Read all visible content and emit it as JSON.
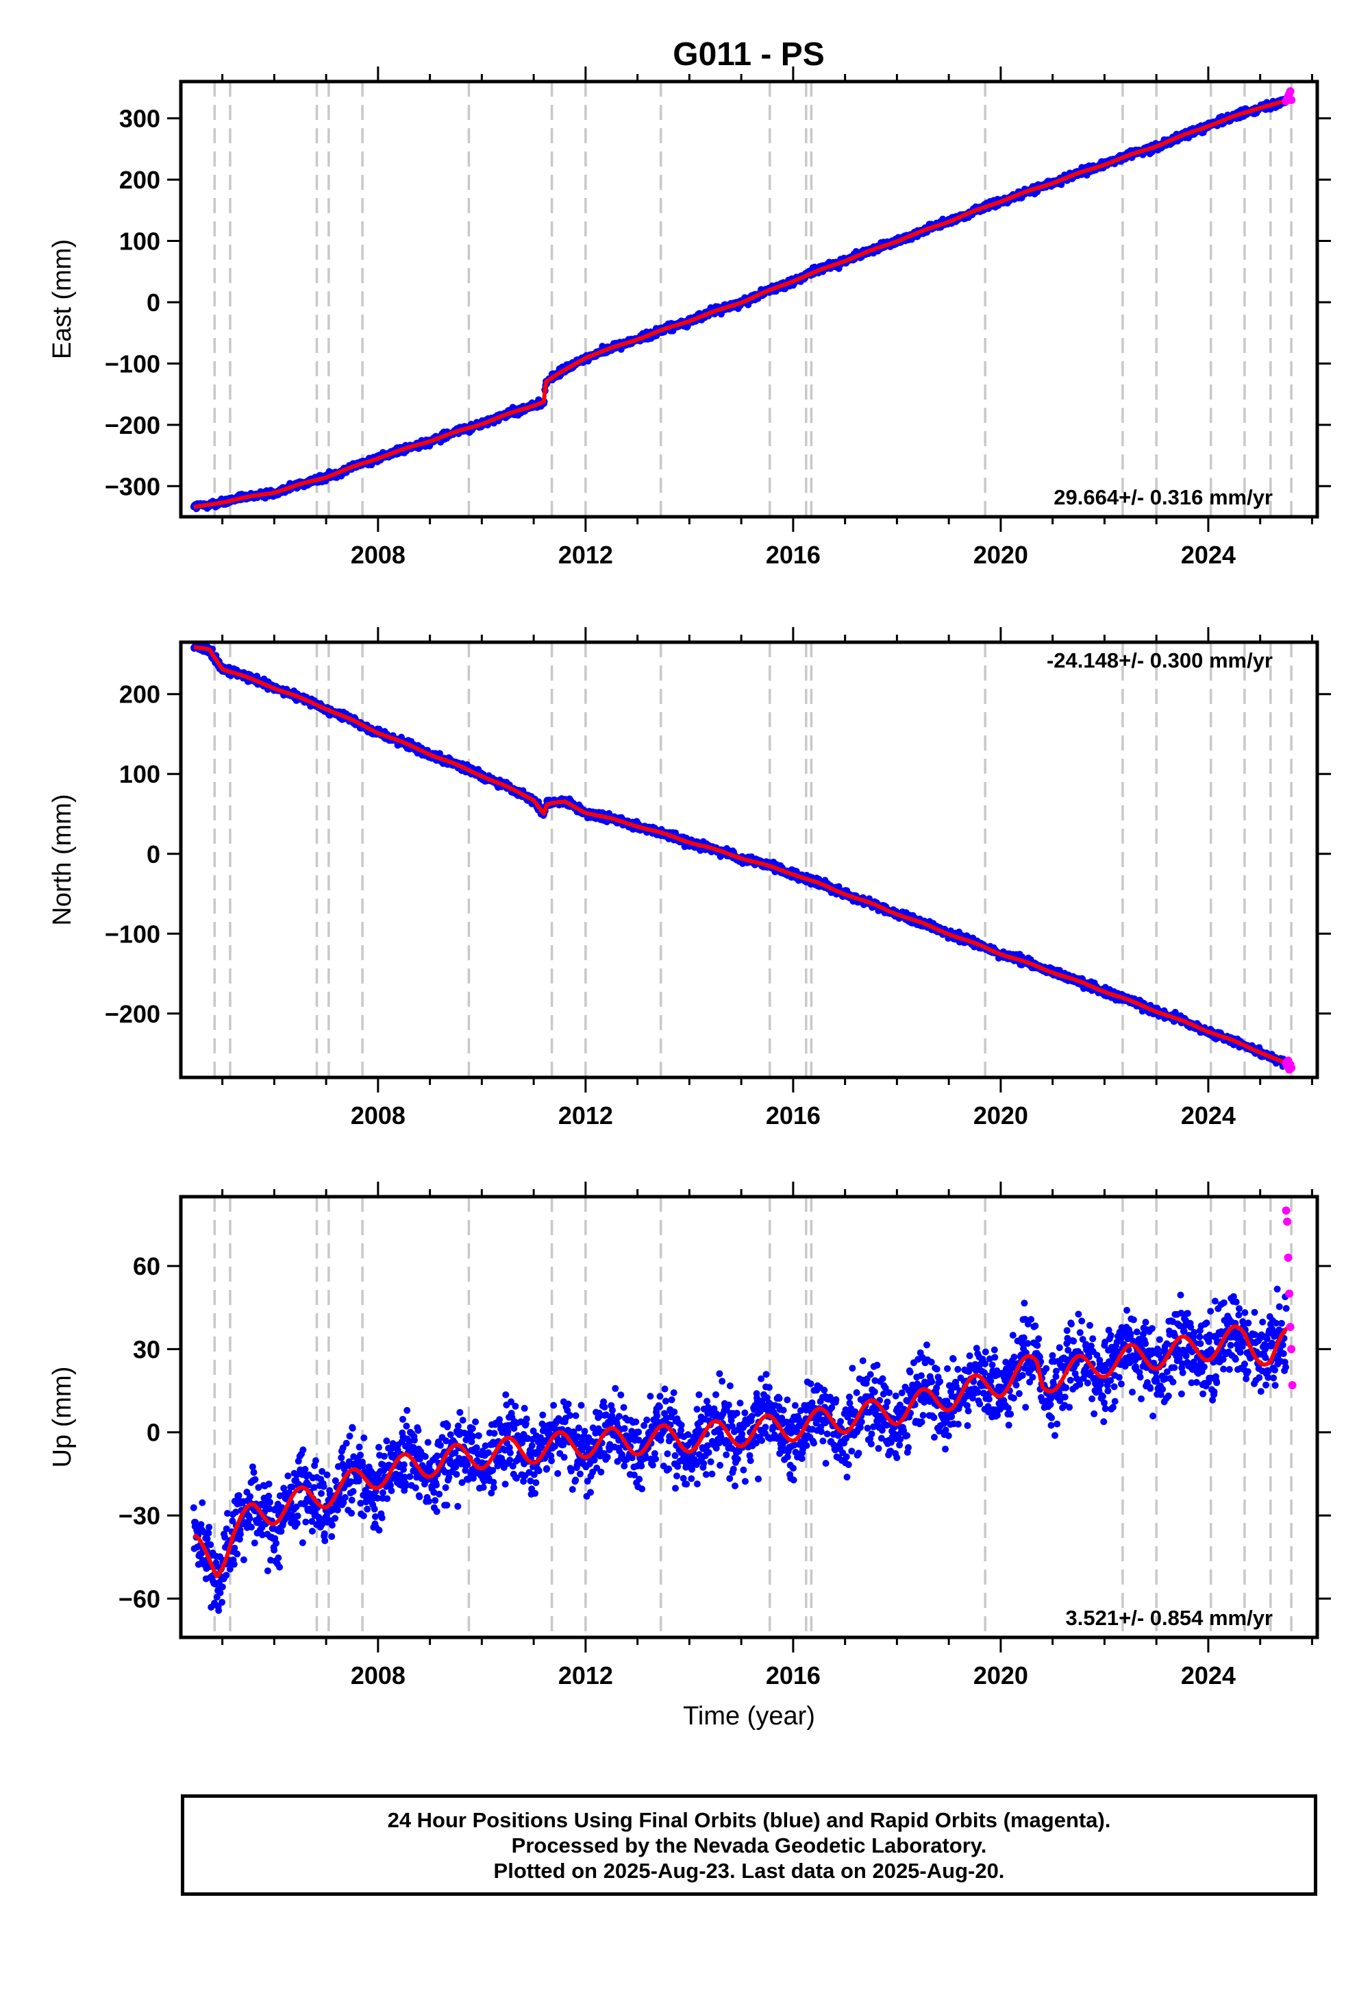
{
  "title": "G011 - PS",
  "colors": {
    "final_orbits": "#0000ff",
    "rapid_orbits": "#ff00ff",
    "model": "#ff0000",
    "event_lines": "#c8c8c8",
    "frame": "#000000"
  },
  "chart_data": [
    {
      "type": "scatter",
      "panel": "east",
      "title": "G011 - PS",
      "xlabel": "",
      "ylabel": "East (mm)",
      "xlim": [
        2004.2,
        2026.1
      ],
      "ylim": [
        -350,
        360
      ],
      "xticks": [
        2008,
        2012,
        2016,
        2020,
        2024
      ],
      "xtick_labels": [
        "2008",
        "2012",
        "2016",
        "2020",
        "2024"
      ],
      "yticks": [
        -300,
        -200,
        -100,
        0,
        100,
        200,
        300
      ],
      "ytick_labels": [
        "−300",
        "−200",
        "−100",
        "0",
        "100",
        "200",
        "300"
      ],
      "grid": false,
      "velocity_label": "29.664+/- 0.316 mm/yr",
      "velocity_position": "bottom-right",
      "event_lines": [
        2004.85,
        2005.15,
        2006.82,
        2007.05,
        2007.7,
        2009.75,
        2011.35,
        2012.0,
        2013.45,
        2015.55,
        2016.25,
        2016.35,
        2019.7,
        2022.35,
        2023.0,
        2024.05,
        2024.7,
        2025.2,
        2025.6
      ],
      "series": [
        {
          "name": "Final Orbits",
          "color": "#0000ff",
          "start": 2004.45,
          "end": 2025.5,
          "noise_mm": 3.0,
          "seasonal_mm": 0.8,
          "curve": [
            [
              2004.45,
              -335
            ],
            [
              2005.0,
              -326
            ],
            [
              2006.0,
              -310
            ],
            [
              2007.0,
              -285
            ],
            [
              2008.0,
              -254
            ],
            [
              2009.0,
              -226
            ],
            [
              2010.0,
              -198
            ],
            [
              2011.0,
              -168
            ],
            [
              2011.2,
              -162
            ],
            [
              2011.23,
              -130
            ],
            [
              2012.0,
              -90
            ],
            [
              2013.0,
              -60
            ],
            [
              2014.0,
              -30
            ],
            [
              2015.0,
              0
            ],
            [
              2016.0,
              35
            ],
            [
              2017.0,
              68
            ],
            [
              2018.0,
              100
            ],
            [
              2019.0,
              132
            ],
            [
              2020.0,
              165
            ],
            [
              2021.0,
              195
            ],
            [
              2022.0,
              225
            ],
            [
              2023.0,
              255
            ],
            [
              2024.0,
              288
            ],
            [
              2025.0,
              318
            ],
            [
              2025.6,
              330
            ]
          ]
        },
        {
          "name": "Rapid Orbits",
          "color": "#ff00ff",
          "points": [
            [
              2025.5,
              328
            ],
            [
              2025.52,
              332
            ],
            [
              2025.54,
              336
            ],
            [
              2025.56,
              340
            ],
            [
              2025.58,
              344
            ],
            [
              2025.6,
              330
            ]
          ]
        },
        {
          "name": "Model",
          "color": "#ff0000",
          "type": "line",
          "curve": [
            [
              2004.45,
              -335
            ],
            [
              2005.0,
              -326
            ],
            [
              2006.0,
              -310
            ],
            [
              2007.0,
              -285
            ],
            [
              2008.0,
              -254
            ],
            [
              2009.0,
              -226
            ],
            [
              2010.0,
              -198
            ],
            [
              2011.0,
              -168
            ],
            [
              2011.2,
              -162
            ],
            [
              2011.23,
              -130
            ],
            [
              2012.0,
              -90
            ],
            [
              2013.0,
              -60
            ],
            [
              2014.0,
              -30
            ],
            [
              2015.0,
              0
            ],
            [
              2016.0,
              35
            ],
            [
              2017.0,
              68
            ],
            [
              2018.0,
              100
            ],
            [
              2019.0,
              132
            ],
            [
              2020.0,
              165
            ],
            [
              2021.0,
              195
            ],
            [
              2022.0,
              225
            ],
            [
              2023.0,
              255
            ],
            [
              2024.0,
              288
            ],
            [
              2025.0,
              318
            ],
            [
              2025.6,
              330
            ]
          ]
        }
      ]
    },
    {
      "type": "scatter",
      "panel": "north",
      "xlabel": "",
      "ylabel": "North (mm)",
      "xlim": [
        2004.2,
        2026.1
      ],
      "ylim": [
        -280,
        265
      ],
      "xticks": [
        2008,
        2012,
        2016,
        2020,
        2024
      ],
      "xtick_labels": [
        "2008",
        "2012",
        "2016",
        "2020",
        "2024"
      ],
      "yticks": [
        -200,
        -100,
        0,
        100,
        200
      ],
      "ytick_labels": [
        "−200",
        "−100",
        "0",
        "100",
        "200"
      ],
      "grid": false,
      "velocity_label": "-24.148+/- 0.300 mm/yr",
      "velocity_position": "top-right",
      "event_lines": [
        2004.85,
        2005.15,
        2006.82,
        2007.05,
        2007.7,
        2009.75,
        2011.35,
        2012.0,
        2013.45,
        2015.55,
        2016.25,
        2016.35,
        2019.7,
        2022.35,
        2023.0,
        2024.05,
        2024.7,
        2025.2,
        2025.6
      ],
      "series": [
        {
          "name": "Final Orbits",
          "color": "#0000ff",
          "start": 2004.45,
          "end": 2025.5,
          "noise_mm": 2.5,
          "seasonal_mm": 0.8,
          "curve": [
            [
              2004.45,
              258
            ],
            [
              2004.75,
              256
            ],
            [
              2005.0,
              232
            ],
            [
              2006.0,
              208
            ],
            [
              2007.0,
              182
            ],
            [
              2008.0,
              152
            ],
            [
              2009.0,
              125
            ],
            [
              2010.0,
              98
            ],
            [
              2011.0,
              68
            ],
            [
              2011.2,
              50
            ],
            [
              2011.25,
              62
            ],
            [
              2011.6,
              65
            ],
            [
              2012.0,
              52
            ],
            [
              2013.0,
              35
            ],
            [
              2014.0,
              15
            ],
            [
              2015.0,
              -5
            ],
            [
              2016.0,
              -25
            ],
            [
              2017.0,
              -50
            ],
            [
              2018.0,
              -75
            ],
            [
              2019.0,
              -100
            ],
            [
              2020.0,
              -125
            ],
            [
              2021.0,
              -148
            ],
            [
              2022.0,
              -172
            ],
            [
              2023.0,
              -197
            ],
            [
              2024.0,
              -222
            ],
            [
              2025.0,
              -248
            ],
            [
              2025.6,
              -266
            ]
          ]
        },
        {
          "name": "Rapid Orbits",
          "color": "#ff00ff",
          "points": [
            [
              2025.5,
              -262
            ],
            [
              2025.52,
              -266
            ],
            [
              2025.54,
              -259
            ],
            [
              2025.56,
              -270
            ],
            [
              2025.58,
              -264
            ],
            [
              2025.6,
              -268
            ]
          ]
        },
        {
          "name": "Model",
          "color": "#ff0000",
          "type": "line",
          "curve": [
            [
              2004.45,
              258
            ],
            [
              2004.75,
              256
            ],
            [
              2005.0,
              232
            ],
            [
              2006.0,
              208
            ],
            [
              2007.0,
              182
            ],
            [
              2008.0,
              152
            ],
            [
              2009.0,
              125
            ],
            [
              2010.0,
              98
            ],
            [
              2011.0,
              68
            ],
            [
              2011.2,
              50
            ],
            [
              2011.25,
              62
            ],
            [
              2011.6,
              65
            ],
            [
              2012.0,
              52
            ],
            [
              2013.0,
              35
            ],
            [
              2014.0,
              15
            ],
            [
              2015.0,
              -5
            ],
            [
              2016.0,
              -25
            ],
            [
              2017.0,
              -50
            ],
            [
              2018.0,
              -75
            ],
            [
              2019.0,
              -100
            ],
            [
              2020.0,
              -125
            ],
            [
              2021.0,
              -148
            ],
            [
              2022.0,
              -172
            ],
            [
              2023.0,
              -197
            ],
            [
              2024.0,
              -222
            ],
            [
              2025.0,
              -248
            ],
            [
              2025.6,
              -266
            ]
          ]
        }
      ]
    },
    {
      "type": "scatter",
      "panel": "up",
      "xlabel": "Time (year)",
      "ylabel": "Up (mm)",
      "xlim": [
        2004.2,
        2026.1
      ],
      "ylim": [
        -74,
        85
      ],
      "xticks": [
        2008,
        2012,
        2016,
        2020,
        2024
      ],
      "xtick_labels": [
        "2008",
        "2012",
        "2016",
        "2020",
        "2024"
      ],
      "yticks": [
        -60,
        -30,
        0,
        30,
        60
      ],
      "ytick_labels": [
        "−60",
        "−30",
        "0",
        "30",
        "60"
      ],
      "grid": false,
      "velocity_label": "3.521+/- 0.854 mm/yr",
      "velocity_position": "bottom-right",
      "event_lines": [
        2004.85,
        2005.15,
        2006.82,
        2007.05,
        2007.7,
        2009.75,
        2011.35,
        2012.0,
        2013.45,
        2015.55,
        2016.25,
        2016.35,
        2019.7,
        2022.35,
        2023.0,
        2024.05,
        2024.7,
        2025.2,
        2025.6
      ],
      "series": [
        {
          "name": "Final Orbits",
          "color": "#0000ff",
          "start": 2004.45,
          "end": 2025.5,
          "noise_mm": 7.0,
          "seasonal_mm": 5.0,
          "curve": [
            [
              2004.45,
              -42
            ],
            [
              2004.9,
              -48
            ],
            [
              2005.2,
              -36
            ],
            [
              2005.6,
              -30
            ],
            [
              2006.0,
              -28
            ],
            [
              2007.0,
              -22
            ],
            [
              2008.0,
              -15
            ],
            [
              2009.0,
              -11
            ],
            [
              2010.0,
              -8
            ],
            [
              2011.0,
              -6
            ],
            [
              2012.0,
              -4
            ],
            [
              2013.0,
              -3
            ],
            [
              2014.0,
              -2
            ],
            [
              2015.0,
              0
            ],
            [
              2016.0,
              2
            ],
            [
              2017.0,
              5
            ],
            [
              2018.0,
              8
            ],
            [
              2019.0,
              13
            ],
            [
              2020.0,
              18
            ],
            [
              2020.7,
              24
            ],
            [
              2020.8,
              18
            ],
            [
              2021.0,
              20
            ],
            [
              2022.0,
              25
            ],
            [
              2023.0,
              28
            ],
            [
              2024.0,
              31
            ],
            [
              2024.7,
              34
            ],
            [
              2025.0,
              30
            ],
            [
              2025.2,
              27
            ],
            [
              2025.6,
              34
            ]
          ]
        },
        {
          "name": "Rapid Orbits",
          "color": "#ff00ff",
          "points": [
            [
              2025.5,
              80
            ],
            [
              2025.52,
              76
            ],
            [
              2025.54,
              63
            ],
            [
              2025.56,
              50
            ],
            [
              2025.58,
              38
            ],
            [
              2025.6,
              30
            ],
            [
              2025.62,
              17
            ]
          ]
        },
        {
          "name": "Model",
          "color": "#ff0000",
          "type": "line",
          "curve": [
            [
              2004.45,
              -42
            ],
            [
              2004.9,
              -48
            ],
            [
              2005.2,
              -36
            ],
            [
              2005.6,
              -30
            ],
            [
              2006.0,
              -28
            ],
            [
              2007.0,
              -22
            ],
            [
              2008.0,
              -15
            ],
            [
              2009.0,
              -11
            ],
            [
              2010.0,
              -8
            ],
            [
              2011.0,
              -6
            ],
            [
              2012.0,
              -4
            ],
            [
              2013.0,
              -3
            ],
            [
              2014.0,
              -2
            ],
            [
              2015.0,
              0
            ],
            [
              2016.0,
              2
            ],
            [
              2017.0,
              5
            ],
            [
              2018.0,
              8
            ],
            [
              2019.0,
              13
            ],
            [
              2020.0,
              18
            ],
            [
              2020.7,
              24
            ],
            [
              2020.8,
              18
            ],
            [
              2021.0,
              20
            ],
            [
              2022.0,
              25
            ],
            [
              2023.0,
              28
            ],
            [
              2024.0,
              31
            ],
            [
              2024.7,
              34
            ],
            [
              2025.0,
              30
            ],
            [
              2025.2,
              27
            ],
            [
              2025.6,
              34
            ]
          ]
        }
      ]
    }
  ],
  "footer": {
    "line1": "24 Hour Positions Using Final Orbits (blue) and Rapid Orbits (magenta).",
    "line2": "Processed by the Nevada Geodetic Laboratory.",
    "line3": "Plotted on 2025-Aug-23. Last data on 2025-Aug-20."
  }
}
